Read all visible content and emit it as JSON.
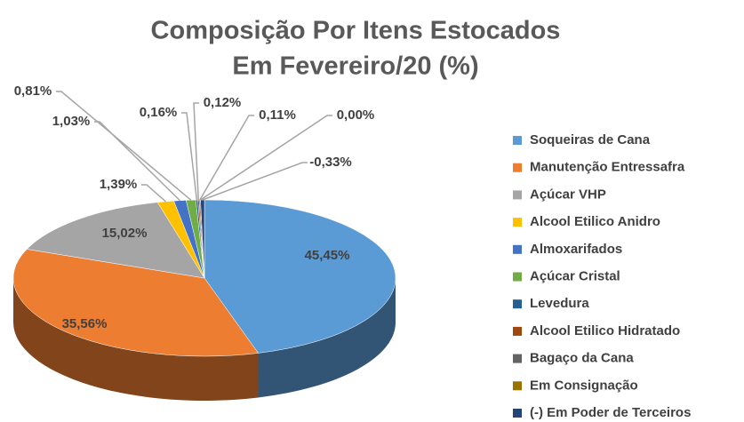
{
  "chart_data": {
    "type": "pie3d",
    "title": "Composição Por Itens Estocados",
    "subtitle": "Em Fevereiro/20 (%)",
    "categories": [
      "Soqueiras de Cana",
      "Manutenção Entressafra",
      "Açúcar VHP",
      "Alcool Etilico Anidro",
      "Almoxarifados",
      "Açúcar Cristal",
      "Levedura",
      "Alcool Etilico Hidratado",
      "Bagaço da Cana",
      "Em Consignação",
      "(-) Em Poder de Terceiros"
    ],
    "values": [
      45.45,
      35.56,
      15.02,
      1.39,
      1.03,
      0.81,
      0.16,
      0.12,
      0.11,
      0.0,
      -0.33
    ],
    "value_labels": [
      "45,45%",
      "35,56%",
      "15,02%",
      "1,39%",
      "1,03%",
      "0,81%",
      "0,16%",
      "0,12%",
      "0,11%",
      "0,00%",
      "-0,33%"
    ],
    "colors": [
      "#5b9bd5",
      "#ed7d31",
      "#a5a5a5",
      "#ffc000",
      "#4472c4",
      "#70ad47",
      "#255e91",
      "#9e480e",
      "#636363",
      "#997300",
      "#264478"
    ],
    "legend": "right"
  }
}
